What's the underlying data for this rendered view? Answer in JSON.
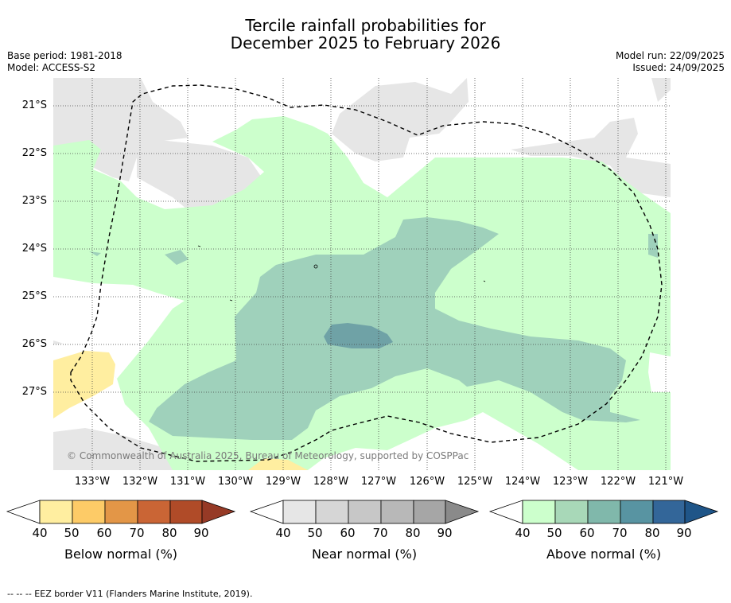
{
  "title_line1": "Tercile rainfall probabilities for",
  "title_line2": "December 2025 to February 2026",
  "base_period": "Base period: 1981-2018",
  "model": "Model: ACCESS-S2",
  "model_run": "Model run: 22/09/2025",
  "issued": "Issued: 24/09/2025",
  "copyright": "© Commonwealth of Australia 2025, Bureau of Meteorology, supported by COSPPac",
  "footer": "-- -- -- EEZ border V11 (Flanders Marine Institute, 2019).",
  "lat_labels": [
    "21°S",
    "22°S",
    "23°S",
    "24°S",
    "25°S",
    "26°S",
    "27°S"
  ],
  "lon_labels": [
    "133°W",
    "132°W",
    "131°W",
    "130°W",
    "129°W",
    "128°W",
    "127°W",
    "126°W",
    "125°W",
    "124°W",
    "123°W",
    "122°W",
    "121°W"
  ],
  "colorbars": [
    {
      "label": "Below normal (%)",
      "ticks": [
        "40",
        "50",
        "60",
        "70",
        "80",
        "90"
      ],
      "colors": [
        "#ffffff",
        "#ffeea0",
        "#fdcb67",
        "#e39647",
        "#ca6535",
        "#b04b28",
        "#963a26"
      ]
    },
    {
      "label": "Near normal (%)",
      "ticks": [
        "40",
        "50",
        "60",
        "70",
        "80",
        "90"
      ],
      "colors": [
        "#ffffff",
        "#e6e6e6",
        "#d6d6d6",
        "#c7c7c7",
        "#b8b8b8",
        "#a6a6a6",
        "#8a8a8a"
      ]
    },
    {
      "label": "Above normal (%)",
      "ticks": [
        "40",
        "50",
        "60",
        "70",
        "80",
        "90"
      ],
      "colors": [
        "#ffffff",
        "#ccffcc",
        "#a8d8b8",
        "#80b8ab",
        "#5894a2",
        "#336699",
        "#1f5588"
      ]
    }
  ]
}
